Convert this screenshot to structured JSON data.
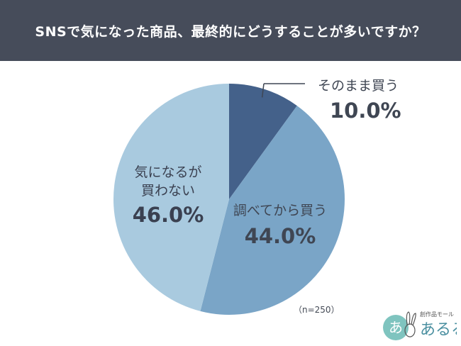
{
  "chart_data": {
    "type": "pie",
    "title": "SNSで気になった商品、最終的にどうすることが多いですか？",
    "slices": [
      {
        "label": "そのまま買う",
        "value": 10.0,
        "display": "10.0%",
        "color": "#44618a"
      },
      {
        "label": "調べてから買う",
        "value": 44.0,
        "display": "44.0%",
        "color": "#7aa5c7"
      },
      {
        "label": "気になるが買わない",
        "label_lines": [
          "気になるが",
          "買わない"
        ],
        "value": 46.0,
        "display": "46.0%",
        "color": "#a9cadf"
      }
    ]
  },
  "sample_note": "（n=250）",
  "logo": {
    "tagline": "創作品モール",
    "name": "あるる",
    "initial": "あ"
  }
}
